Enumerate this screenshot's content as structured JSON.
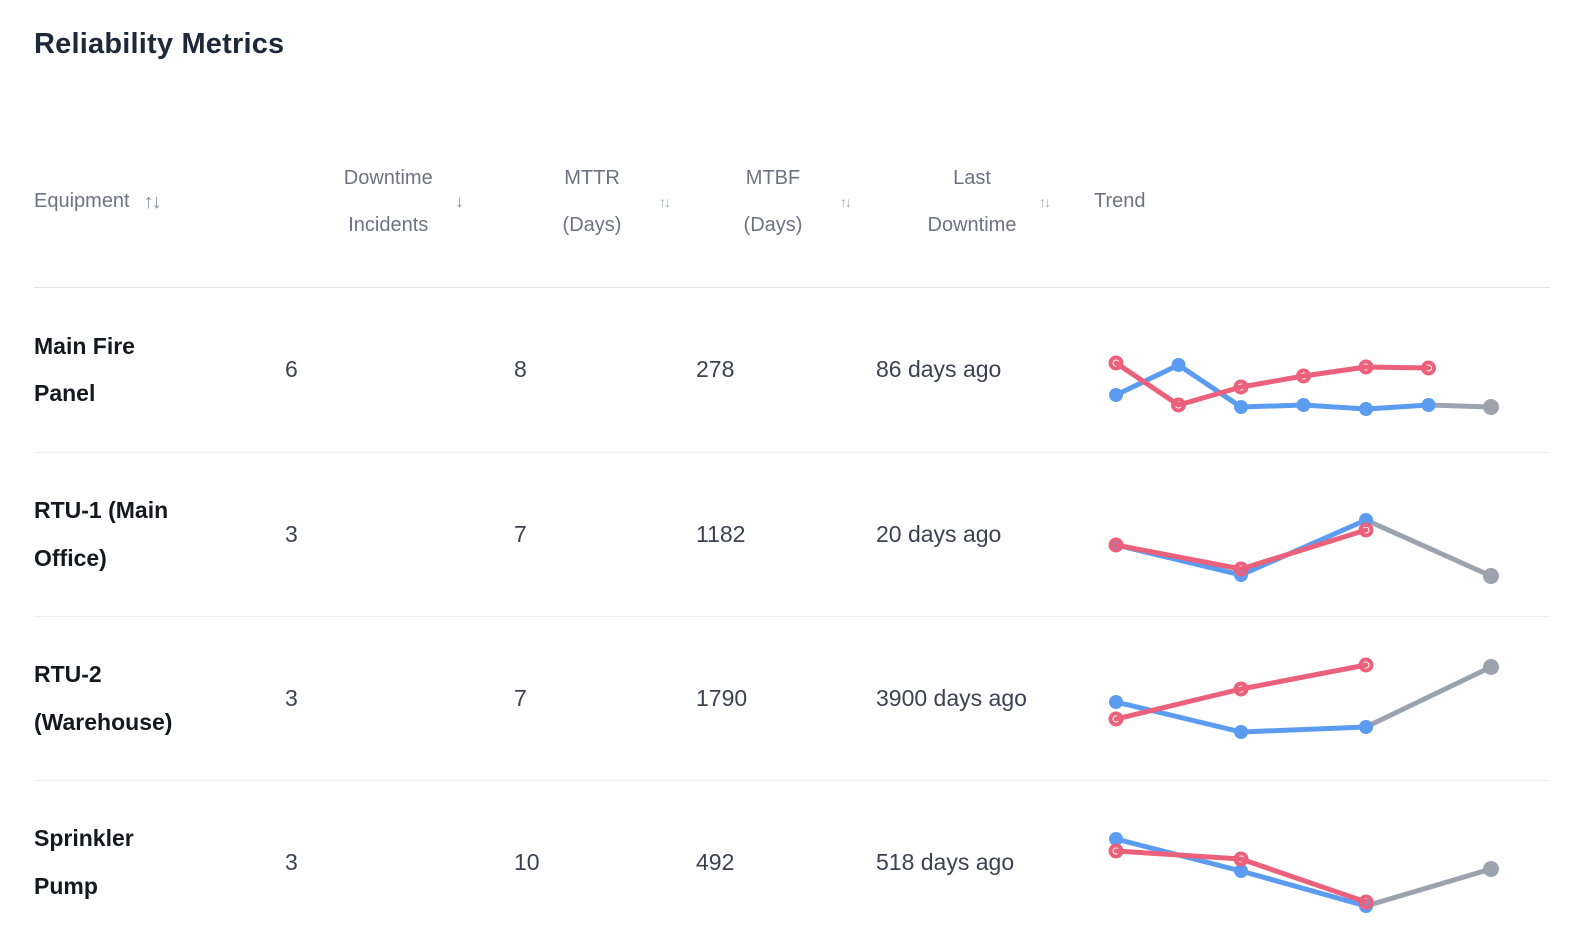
{
  "title": "Reliability Metrics",
  "table": {
    "columns": [
      {
        "label": "Equipment",
        "sort_icon": "↑↓",
        "sortable": true
      },
      {
        "label": "Downtime Incidents",
        "sort_icon": "↓",
        "sortable": true
      },
      {
        "label": "MTTR (Days)",
        "sort_icon": "↑↓",
        "sortable": true
      },
      {
        "label": "MTBF (Days)",
        "sort_icon": "↑↓",
        "sortable": true
      },
      {
        "label": "Last Downtime",
        "sort_icon": "↑↓",
        "sortable": true
      },
      {
        "label": "Trend",
        "sort_icon": "",
        "sortable": false
      }
    ],
    "rows": [
      {
        "equipment": "Main Fire Panel",
        "incidents": "6",
        "mttr": "8",
        "mtbf": "278",
        "last_downtime": "86 days ago"
      },
      {
        "equipment": "RTU-1 (Main Office)",
        "incidents": "3",
        "mttr": "7",
        "mtbf": "1182",
        "last_downtime": "20 days ago"
      },
      {
        "equipment": "RTU-2 (Warehouse)",
        "incidents": "3",
        "mttr": "7",
        "mtbf": "1790",
        "last_downtime": "3900 days ago"
      },
      {
        "equipment": "Sprinkler Pump",
        "incidents": "3",
        "mttr": "10",
        "mtbf": "492",
        "last_downtime": "518 days ago"
      }
    ]
  },
  "colors": {
    "blue": "#5c9cf0",
    "red": "#eb617c",
    "gray": "#9ca3af"
  },
  "chart_data": [
    {
      "type": "line",
      "equipment": "Main Fire Panel",
      "series": [
        {
          "name": "blue",
          "color": "#5c9cf0",
          "marker": "solid",
          "values": [
            25,
            55,
            13,
            15,
            11,
            15
          ]
        },
        {
          "name": "red",
          "color": "#eb617c",
          "marker": "ring",
          "values": [
            57,
            15,
            33,
            44,
            53,
            52
          ]
        }
      ],
      "projection": {
        "color": "#9ca3af",
        "from": "blue",
        "value": 13
      },
      "value_range": [
        0,
        100
      ],
      "grid": false,
      "legend": false
    },
    {
      "type": "line",
      "equipment": "RTU-1 (Main Office)",
      "series": [
        {
          "name": "blue",
          "color": "#5c9cf0",
          "marker": "solid",
          "values": [
            40,
            10,
            65
          ]
        },
        {
          "name": "red",
          "color": "#eb617c",
          "marker": "ring",
          "values": [
            40,
            16,
            55
          ]
        }
      ],
      "projection": {
        "color": "#9ca3af",
        "from": "blue",
        "value": 9
      },
      "value_range": [
        0,
        100
      ],
      "grid": false,
      "legend": false
    },
    {
      "type": "line",
      "equipment": "RTU-2 (Warehouse)",
      "series": [
        {
          "name": "blue",
          "color": "#5c9cf0",
          "marker": "solid",
          "values": [
            47,
            17,
            22
          ]
        },
        {
          "name": "red",
          "color": "#eb617c",
          "marker": "ring",
          "values": [
            30,
            60,
            84
          ]
        }
      ],
      "projection": {
        "color": "#9ca3af",
        "from": "blue",
        "value": 82
      },
      "value_range": [
        0,
        100
      ],
      "grid": false,
      "legend": false
    },
    {
      "type": "line",
      "equipment": "Sprinkler Pump",
      "series": [
        {
          "name": "blue",
          "color": "#5c9cf0",
          "marker": "solid",
          "values": [
            74,
            42,
            7
          ]
        },
        {
          "name": "red",
          "color": "#eb617c",
          "marker": "ring",
          "values": [
            62,
            54,
            11
          ]
        }
      ],
      "projection": {
        "color": "#9ca3af",
        "from": "blue",
        "value": 44
      },
      "value_range": [
        0,
        100
      ],
      "grid": false,
      "legend": false
    }
  ]
}
